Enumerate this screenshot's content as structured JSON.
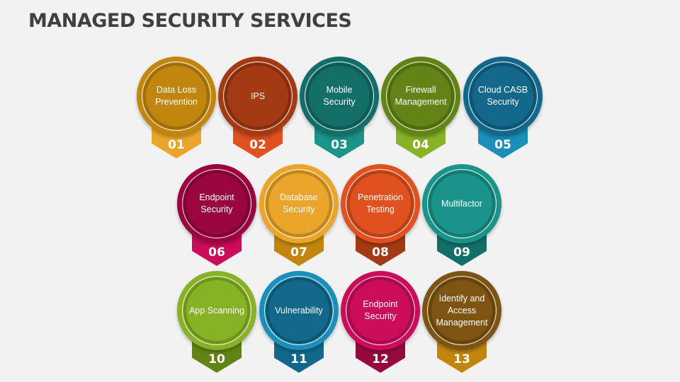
{
  "title": "MANAGED SECURITY SERVICES",
  "items": [
    {
      "num": "01",
      "label": "Data Loss\nPrevention",
      "outer": "#c2860f",
      "inner": "#c2860f",
      "tab": "#eaa52a"
    },
    {
      "num": "02",
      "label": "IPS",
      "outer": "#a43a14",
      "inner": "#a43a14",
      "tab": "#e0511f"
    },
    {
      "num": "03",
      "label": "Mobile\nSecurity",
      "outer": "#136e68",
      "inner": "#136e68",
      "tab": "#1a948a"
    },
    {
      "num": "04",
      "label": "Firewall\nManagement",
      "outer": "#628315",
      "inner": "#628315",
      "tab": "#88b225"
    },
    {
      "num": "05",
      "label": "Cloud CASB\nSecurity",
      "outer": "#13678a",
      "inner": "#13678a",
      "tab": "#1b8fb9"
    },
    {
      "num": "06",
      "label": "Endpoint\nSecurity",
      "outer": "#9a0540",
      "inner": "#9a0540",
      "tab": "#cc0c5a"
    },
    {
      "num": "07",
      "label": "Database\nSecurity",
      "outer": "#eaa52a",
      "inner": "#eaa52a",
      "tab": "#c2860f"
    },
    {
      "num": "08",
      "label": "Penetration\nTesting",
      "outer": "#e0511f",
      "inner": "#e0511f",
      "tab": "#a43a14"
    },
    {
      "num": "09",
      "label": "Multifactor",
      "outer": "#1a948a",
      "inner": "#1a948a",
      "tab": "#136e68"
    },
    {
      "num": "10",
      "label": "App Scanning",
      "outer": "#88b225",
      "inner": "#88b225",
      "tab": "#628315"
    },
    {
      "num": "11",
      "label": "Vulnerability",
      "outer": "#1b8fb9",
      "inner": "#13678a",
      "tab": "#13678a"
    },
    {
      "num": "12",
      "label": "Endpoint\nSecurity",
      "outer": "#cc0c5a",
      "inner": "#cc0c5a",
      "tab": "#96093f"
    },
    {
      "num": "13",
      "label": "Identify and\nAccess\nManagement",
      "outer": "#7e5412",
      "inner": "#7e5412",
      "tab": "#c2860f"
    }
  ]
}
